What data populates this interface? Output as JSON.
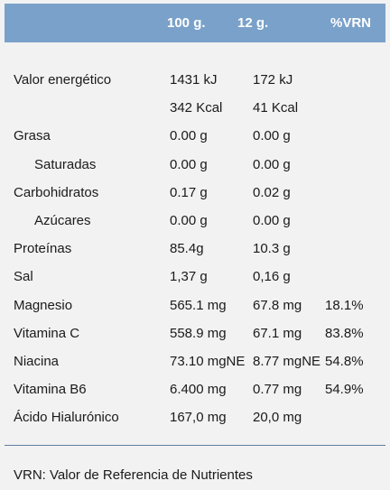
{
  "header": {
    "col1": "100 g.",
    "col2": "12 g.",
    "col3": "%VRN"
  },
  "rows": [
    {
      "label": "Valor energético",
      "v100": "1431 kJ",
      "v12": "172 kJ",
      "vrn": "",
      "indent": false
    },
    {
      "label": "",
      "v100": "342 Kcal",
      "v12": "41 Kcal",
      "vrn": "",
      "indent": false
    },
    {
      "label": "Grasa",
      "v100": "0.00 g",
      "v12": "0.00 g",
      "vrn": "",
      "indent": false
    },
    {
      "label": "Saturadas",
      "v100": "0.00 g",
      "v12": "0.00 g",
      "vrn": "",
      "indent": true
    },
    {
      "label": "Carbohidratos",
      "v100": "0.17 g",
      "v12": "0.02 g",
      "vrn": "",
      "indent": false
    },
    {
      "label": "Azúcares",
      "v100": "0.00 g",
      "v12": "0.00 g",
      "vrn": "",
      "indent": true
    },
    {
      "label": "Proteínas",
      "v100": "85.4g",
      "v12": "10.3 g",
      "vrn": "",
      "indent": false
    },
    {
      "label": "Sal",
      "v100": "1,37 g",
      "v12": "0,16 g",
      "vrn": "",
      "indent": false
    },
    {
      "label": "Magnesio",
      "v100": "565.1 mg",
      "v12": "67.8 mg",
      "vrn": "18.1%",
      "indent": false
    },
    {
      "label": "Vitamina C",
      "v100": "558.9 mg",
      "v12": "67.1 mg",
      "vrn": "83.8%",
      "indent": false
    },
    {
      "label": "Niacina",
      "v100": "73.10 mgNE",
      "v12": "8.77 mgNE",
      "vrn": "54.8%",
      "indent": false
    },
    {
      "label": "Vitamina B6",
      "v100": "6.400 mg",
      "v12": "0.77 mg",
      "vrn": "54.9%",
      "indent": false
    },
    {
      "label": "Ácido Hialurónico",
      "v100": "167,0 mg",
      "v12": "20,0 mg",
      "vrn": "",
      "indent": false
    }
  ],
  "footnote": "VRN: Valor de Referencia de Nutrientes"
}
